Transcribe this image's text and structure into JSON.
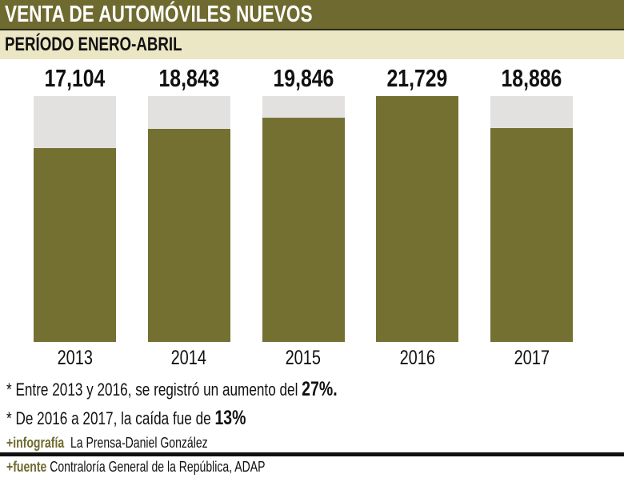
{
  "header": {
    "title": "VENTA DE AUTOMÓVILES NUEVOS",
    "subtitle": "PERÍODO ENERO-ABRIL"
  },
  "chart_data": {
    "type": "bar",
    "categories": [
      "2013",
      "2014",
      "2015",
      "2016",
      "2017"
    ],
    "values": [
      17104,
      18843,
      19846,
      21729,
      18886
    ],
    "value_labels": [
      "17,104",
      "18,843",
      "19,846",
      "21,729",
      "18,886"
    ],
    "ylim": [
      0,
      21729
    ],
    "colors": {
      "bar": "#747031",
      "background": "#e2e1df"
    }
  },
  "notes": [
    {
      "prefix": "* Entre 2013 y 2016, se registró un aumento del ",
      "emph": "27%."
    },
    {
      "prefix": "* De 2016 a 2017, la caída fue de ",
      "emph": "13%"
    }
  ],
  "credits": {
    "infografia_label": "+infografía",
    "infografia_text": "La Prensa-Daniel González",
    "fuente_label": "+fuente",
    "fuente_text": "Contraloría General de la República, ADAP"
  }
}
